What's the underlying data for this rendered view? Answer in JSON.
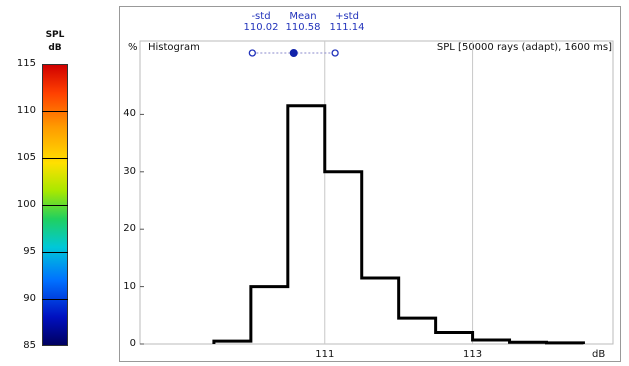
{
  "colorbar": {
    "title_line1": "SPL",
    "title_line2": "dB",
    "ticks": [
      "115",
      "110",
      "105",
      "100",
      "95",
      "90",
      "85"
    ],
    "range": [
      85,
      115
    ]
  },
  "chart_data": {
    "type": "bar",
    "title": "Histogram",
    "subtitle": "SPL [50000 rays (adapt), 1600 ms]",
    "xlabel": "dB",
    "ylabel": "%",
    "bin_edges": [
      109.5,
      110.0,
      110.5,
      111.0,
      111.5,
      112.0,
      112.5,
      113.0,
      113.5,
      114.0,
      114.5
    ],
    "values": [
      0.5,
      10,
      41.5,
      30,
      11.5,
      4.5,
      2,
      0.7,
      0.3,
      0.2
    ],
    "xlim": [
      108.5,
      114.9
    ],
    "ylim": [
      0,
      50
    ],
    "x_ticks": [
      111,
      113
    ],
    "y_ticks": [
      0,
      10,
      20,
      30,
      40
    ],
    "grid": true,
    "stats": {
      "minus_std": {
        "label": "-std",
        "value": "110.02"
      },
      "mean": {
        "label": "Mean",
        "value": "110.58"
      },
      "plus_std": {
        "label": "+std",
        "value": "111.14"
      }
    }
  }
}
